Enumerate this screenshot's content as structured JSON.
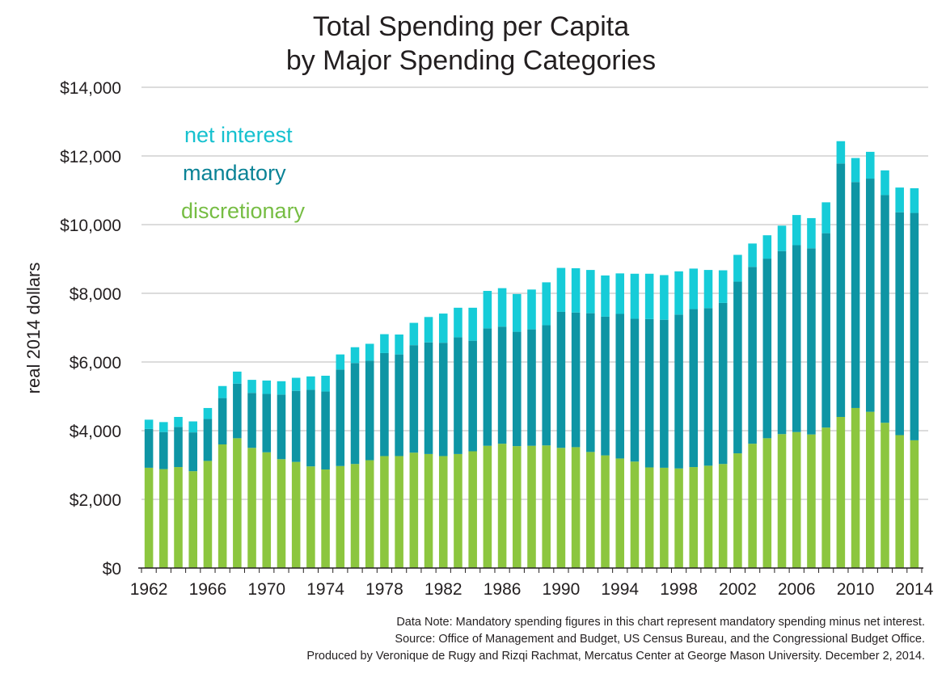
{
  "chart_data": {
    "type": "bar",
    "stacked": true,
    "title": "Total Spending per Capita",
    "subtitle": "by Major Spending Categories",
    "ylabel": "real 2014 dollars",
    "xlabel": "",
    "ylim": [
      0,
      14000
    ],
    "yticks": [
      0,
      2000,
      4000,
      6000,
      8000,
      10000,
      12000,
      14000
    ],
    "ytick_labels": [
      "$0",
      "$2,000",
      "$4,000",
      "$6,000",
      "$8,000",
      "$10,000",
      "$12,000",
      "$14,000"
    ],
    "xtick_labels": [
      "1962",
      "1966",
      "1970",
      "1974",
      "1978",
      "1982",
      "1986",
      "1990",
      "1994",
      "1998",
      "2002",
      "2006",
      "2010",
      "2014"
    ],
    "grid": "horizontal",
    "legend_position": "top-left",
    "categories": [
      1962,
      1963,
      1964,
      1965,
      1966,
      1967,
      1968,
      1969,
      1970,
      1971,
      1972,
      1973,
      1974,
      1975,
      1976,
      1977,
      1978,
      1979,
      1980,
      1981,
      1982,
      1983,
      1984,
      1985,
      1986,
      1987,
      1988,
      1989,
      1990,
      1991,
      1992,
      1993,
      1994,
      1995,
      1996,
      1997,
      1998,
      1999,
      2000,
      2001,
      2002,
      2003,
      2004,
      2005,
      2006,
      2007,
      2008,
      2009,
      2010,
      2011,
      2012,
      2013,
      2014
    ],
    "series": [
      {
        "name": "discretionary",
        "color": "#8cc63f",
        "values": [
          2920,
          2880,
          2940,
          2820,
          3120,
          3600,
          3780,
          3500,
          3370,
          3170,
          3090,
          2960,
          2870,
          2970,
          3030,
          3140,
          3260,
          3260,
          3360,
          3320,
          3260,
          3320,
          3400,
          3560,
          3620,
          3550,
          3560,
          3570,
          3500,
          3520,
          3380,
          3280,
          3190,
          3100,
          2930,
          2920,
          2900,
          2940,
          2980,
          3030,
          3340,
          3620,
          3780,
          3900,
          3960,
          3890,
          4090,
          4400,
          4660,
          4550,
          4230,
          3870,
          3720
        ]
      },
      {
        "name": "mandatory",
        "color": "#0e95a4",
        "values": [
          1130,
          1080,
          1170,
          1130,
          1220,
          1350,
          1590,
          1600,
          1700,
          1880,
          2070,
          2230,
          2270,
          2810,
          2940,
          2900,
          3000,
          2960,
          3130,
          3250,
          3300,
          3400,
          3220,
          3420,
          3410,
          3330,
          3390,
          3500,
          3960,
          3920,
          4040,
          4040,
          4210,
          4160,
          4320,
          4310,
          4480,
          4600,
          4590,
          4690,
          5000,
          5150,
          5230,
          5330,
          5440,
          5420,
          5660,
          7380,
          6580,
          6790,
          6630,
          6490,
          6620
        ]
      },
      {
        "name": "net interest",
        "color": "#16ccd8",
        "values": [
          270,
          290,
          290,
          320,
          320,
          350,
          350,
          380,
          390,
          390,
          380,
          390,
          460,
          440,
          460,
          490,
          550,
          580,
          650,
          740,
          850,
          860,
          960,
          1090,
          1120,
          1100,
          1160,
          1250,
          1280,
          1290,
          1260,
          1200,
          1180,
          1310,
          1320,
          1300,
          1260,
          1180,
          1110,
          950,
          780,
          680,
          680,
          740,
          880,
          880,
          900,
          650,
          700,
          780,
          720,
          720,
          720
        ]
      }
    ],
    "legend": [
      {
        "label": "net interest",
        "color": "#16c1cf"
      },
      {
        "label": "mandatory",
        "color": "#0a8396"
      },
      {
        "label": "discretionary",
        "color": "#76bd43"
      }
    ]
  },
  "notes": {
    "data_note": "Data Note: Mandatory spending figures in this chart represent mandatory spending minus net interest.",
    "source": "Source: Office of Management and Budget, US Census Bureau, and the Congressional Budget Office.",
    "credit": "Produced by Veronique de Rugy and Rizqi Rachmat, Mercatus Center at George Mason University. December 2, 2014."
  },
  "colors": {
    "gridline": "#c8c8c8",
    "axis": "#231f20",
    "text": "#231f20"
  }
}
